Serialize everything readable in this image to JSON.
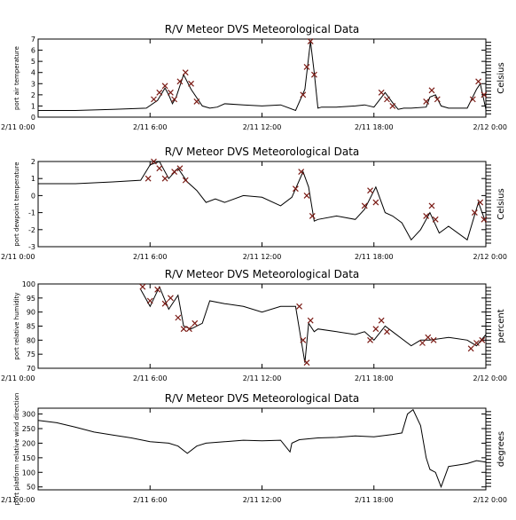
{
  "colors": {
    "line": "#000000",
    "flag_marker": "#7a1a14",
    "background": "#ffffff"
  },
  "chart_data": [
    {
      "type": "line",
      "title": "R/V Meteor DVS Meteorological Data",
      "ylabel": "port air temperature",
      "units_label": "Celsius",
      "ylim": [
        0,
        7
      ],
      "yticks": [
        "0",
        "1",
        "2",
        "3",
        "4",
        "5",
        "6",
        "7"
      ],
      "xlim": [
        0,
        24
      ],
      "xticks": [
        "2/11 0:00",
        "2/11 6:00",
        "2/11 12:00",
        "2/11 18:00",
        "2/12 0:00"
      ],
      "grid": false,
      "series": [
        {
          "x": [
            0,
            2,
            4,
            5.8,
            6.4,
            6.8,
            7,
            7.2,
            7.4,
            7.8,
            8.2,
            8.8,
            9.2,
            9.6,
            10,
            11,
            12,
            13,
            13.8,
            14.3,
            14.6,
            14.8,
            15,
            15.2,
            16,
            17,
            17.5,
            18,
            18.6,
            19,
            19.3,
            19.6,
            20,
            20.8,
            21,
            21.3,
            21.6,
            22,
            23,
            23.5,
            23.7,
            24
          ],
          "y": [
            0.6,
            0.6,
            0.7,
            0.8,
            1.5,
            2.6,
            2.0,
            1.2,
            1.8,
            3.8,
            2.5,
            1.0,
            0.8,
            0.9,
            1.2,
            1.1,
            1.0,
            1.1,
            0.6,
            2.5,
            6.8,
            4.0,
            0.8,
            0.9,
            0.9,
            1.0,
            1.1,
            0.9,
            2.2,
            1.3,
            0.7,
            0.8,
            0.8,
            0.9,
            1.8,
            2.0,
            1.0,
            0.8,
            0.8,
            2.5,
            3.0,
            0.7
          ]
        }
      ],
      "flags": [
        {
          "x": [
            6.2,
            6.5,
            6.8,
            7.1
          ],
          "y": [
            1.6,
            2.2,
            2.8,
            2.2
          ]
        },
        {
          "x": [
            7.3,
            7.6,
            7.9,
            8.2,
            8.5
          ],
          "y": [
            1.6,
            3.2,
            4.0,
            3.0,
            1.4
          ]
        },
        {
          "x": [
            14.2,
            14.4,
            14.6,
            14.8
          ],
          "y": [
            2.0,
            4.5,
            6.8,
            3.8
          ]
        },
        {
          "x": [
            18.4,
            18.7,
            19.0
          ],
          "y": [
            2.2,
            1.6,
            1.0
          ]
        },
        {
          "x": [
            20.8,
            21.1,
            21.4
          ],
          "y": [
            1.4,
            2.4,
            1.6
          ]
        },
        {
          "x": [
            23.3,
            23.6,
            23.9
          ],
          "y": [
            1.6,
            3.2,
            2.0
          ]
        }
      ]
    },
    {
      "type": "line",
      "title": "R/V Meteor DVS Meteorological Data",
      "ylabel": "port dewpoint temperature",
      "units_label": "Celsius",
      "ylim": [
        -3,
        2
      ],
      "yticks": [
        "-3",
        "-2",
        "-1",
        "0",
        "1",
        "2"
      ],
      "xlim": [
        0,
        24
      ],
      "xticks": [
        "2/11 0:00",
        "2/11 6:00",
        "2/11 12:00",
        "2/11 18:00",
        "2/12 0:00"
      ],
      "grid": false,
      "series": [
        {
          "x": [
            0,
            2,
            4,
            5.5,
            6,
            6.5,
            7,
            7.5,
            8,
            8.5,
            9,
            9.5,
            10,
            11,
            12,
            13,
            13.6,
            14.2,
            14.5,
            14.8,
            15,
            16,
            17,
            17.5,
            18.1,
            18.6,
            19,
            19.5,
            20,
            20.5,
            21,
            21.5,
            22,
            23,
            23.6,
            24
          ],
          "y": [
            0.7,
            0.7,
            0.8,
            0.9,
            1.8,
            2.0,
            1.0,
            1.6,
            0.8,
            0.3,
            -0.4,
            -0.2,
            -0.4,
            0.0,
            -0.1,
            -0.6,
            -0.1,
            1.4,
            0.5,
            -1.5,
            -1.4,
            -1.2,
            -1.4,
            -0.8,
            0.5,
            -1.0,
            -1.2,
            -1.6,
            -2.6,
            -2.0,
            -1.0,
            -2.2,
            -1.8,
            -2.6,
            -0.4,
            -1.6
          ]
        }
      ],
      "flags": [
        {
          "x": [
            5.9,
            6.2,
            6.5,
            6.8
          ],
          "y": [
            1.0,
            2.0,
            1.6,
            1.0
          ]
        },
        {
          "x": [
            7.3,
            7.6,
            7.9
          ],
          "y": [
            1.4,
            1.6,
            0.9
          ]
        },
        {
          "x": [
            13.8,
            14.1,
            14.4,
            14.7
          ],
          "y": [
            0.4,
            1.4,
            0.0,
            -1.2
          ]
        },
        {
          "x": [
            17.5,
            17.8,
            18.1
          ],
          "y": [
            -0.6,
            0.3,
            -0.4
          ]
        },
        {
          "x": [
            20.8,
            21.1,
            21.3
          ],
          "y": [
            -1.2,
            -0.6,
            -1.4
          ]
        },
        {
          "x": [
            23.4,
            23.7,
            23.9
          ],
          "y": [
            -1.0,
            -0.4,
            -1.4
          ]
        }
      ]
    },
    {
      "type": "line",
      "title": "R/V Meteor DVS Meteorological Data",
      "ylabel": "port relative humidity",
      "units_label": "percent",
      "ylim": [
        70,
        100
      ],
      "yticks": [
        "70",
        "75",
        "80",
        "85",
        "90",
        "95",
        "100"
      ],
      "xlim": [
        0,
        24
      ],
      "xticks": [
        "2/11 0:00",
        "2/11 6:00",
        "2/11 12:00",
        "2/11 18:00",
        "2/12 0:00"
      ],
      "grid": false,
      "series": [
        {
          "x": [
            5.5,
            6,
            6.5,
            7,
            7.5,
            7.8,
            8.2,
            8.8,
            9.2,
            10,
            11,
            12,
            13,
            13.8,
            14.3,
            14.5,
            14.8,
            15,
            16,
            17,
            17.5,
            18,
            18.6,
            19,
            20,
            20.5,
            21,
            22,
            23,
            23.5,
            24
          ],
          "y": [
            98,
            92,
            99,
            91,
            96,
            85,
            84,
            86,
            94,
            93,
            92,
            90,
            92,
            92,
            72,
            86,
            83,
            84,
            83,
            82,
            83,
            80,
            85,
            83,
            78,
            80,
            80,
            81,
            80,
            78,
            82
          ]
        }
      ],
      "flags": [
        {
          "x": [
            5.6,
            6.0,
            6.4,
            6.8,
            7.1
          ],
          "y": [
            99,
            94,
            98,
            93,
            95
          ]
        },
        {
          "x": [
            7.5,
            7.8,
            8.1,
            8.4
          ],
          "y": [
            88,
            84,
            84,
            86
          ]
        },
        {
          "x": [
            14.0,
            14.2,
            14.4,
            14.6
          ],
          "y": [
            92,
            80,
            72,
            87
          ]
        },
        {
          "x": [
            17.8,
            18.1,
            18.4,
            18.7
          ],
          "y": [
            80,
            84,
            87,
            83
          ]
        },
        {
          "x": [
            20.6,
            20.9,
            21.2
          ],
          "y": [
            79,
            81,
            80
          ]
        },
        {
          "x": [
            23.2,
            23.5,
            23.8
          ],
          "y": [
            77,
            79,
            80
          ]
        }
      ]
    },
    {
      "type": "line",
      "title": "R/V Meteor DVS Meteorological Data",
      "ylabel": "port platform relative wind direction",
      "units_label": "degrees",
      "ylim": [
        40,
        320
      ],
      "yticks": [
        "50",
        "100",
        "150",
        "200",
        "250",
        "300"
      ],
      "xlim": [
        0,
        24
      ],
      "xticks": [
        "2/11 0:00",
        "2/11 6:00",
        "2/11 12:00",
        "2/11 18:00",
        "2/12 0:00"
      ],
      "grid": false,
      "series": [
        {
          "x": [
            0,
            1,
            2,
            3,
            4,
            5,
            6,
            7,
            7.5,
            8,
            8.5,
            9,
            10,
            11,
            12,
            13,
            13.5,
            13.6,
            14,
            15,
            16,
            17,
            18,
            19,
            19.5,
            19.8,
            20.1,
            20.5,
            20.8,
            21,
            21.3,
            21.6,
            22,
            22.5,
            23,
            23.5,
            24
          ],
          "y": [
            278,
            270,
            255,
            238,
            228,
            218,
            205,
            200,
            190,
            165,
            190,
            200,
            205,
            210,
            208,
            210,
            170,
            200,
            212,
            218,
            220,
            225,
            222,
            230,
            235,
            300,
            315,
            260,
            150,
            110,
            100,
            50,
            120,
            125,
            130,
            140,
            135
          ]
        }
      ],
      "flags": []
    }
  ]
}
